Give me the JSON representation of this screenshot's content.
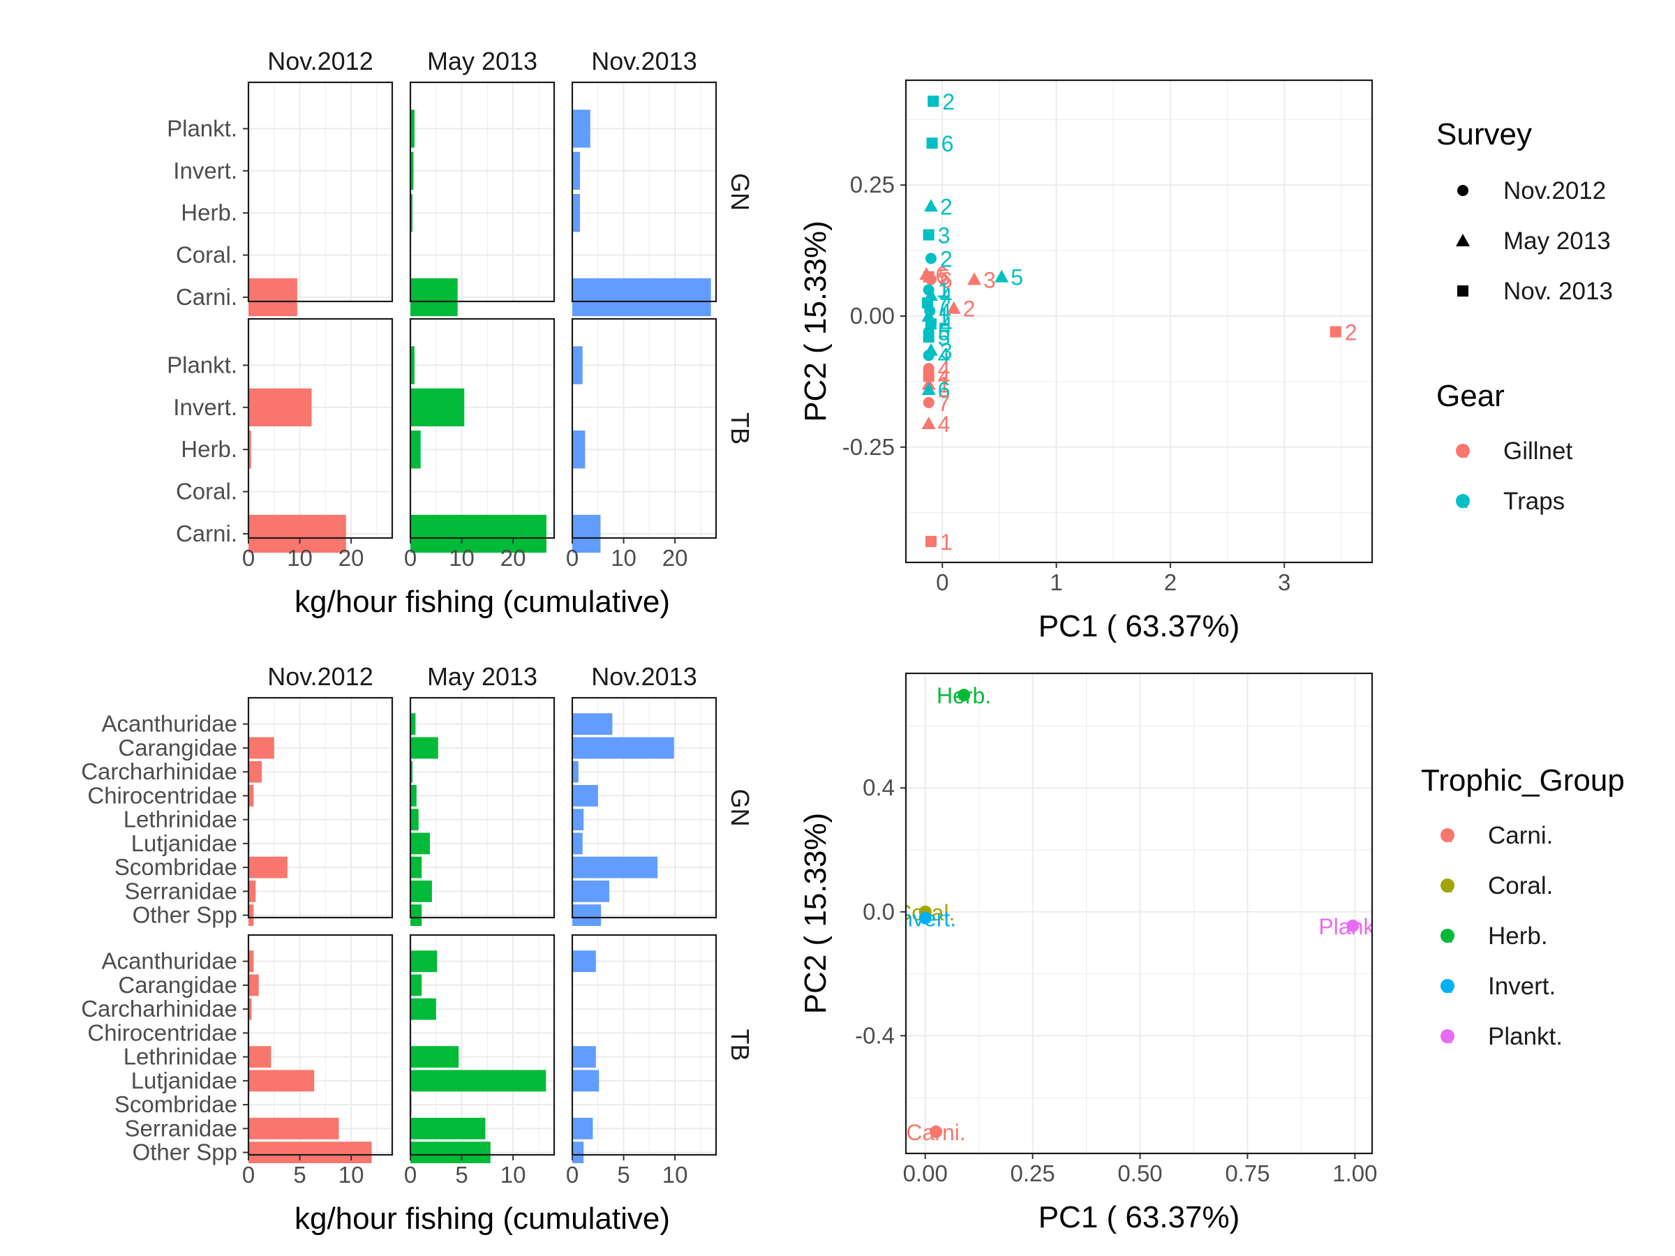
{
  "chart_data": [
    {
      "type": "bar",
      "id": "top-left",
      "orientation": "horizontal",
      "facet_cols": [
        "Nov.2012",
        "May 2013",
        "Nov.2013"
      ],
      "facet_rows": [
        "GN",
        "TB"
      ],
      "categories": [
        "Plankt.",
        "Invert.",
        "Herb.",
        "Coral.",
        "Carni."
      ],
      "xlim": [
        0,
        28
      ],
      "xticks": [
        0,
        10,
        20
      ],
      "xlabel": "kg/hour fishing (cumulative)",
      "colors": [
        "#F8766D",
        "#00BA38",
        "#619CFF"
      ],
      "values": {
        "GN": [
          [
            0,
            0,
            0,
            0,
            9.5
          ],
          [
            0.8,
            0.6,
            0.4,
            0,
            9.2
          ],
          [
            3.5,
            1.5,
            1.5,
            0,
            27.0
          ]
        ],
        "TB": [
          [
            0,
            12.3,
            0.5,
            0,
            19.0
          ],
          [
            0.8,
            10.5,
            2.0,
            0,
            26.5
          ],
          [
            2.0,
            0,
            2.5,
            0,
            5.5
          ]
        ]
      }
    },
    {
      "type": "bar",
      "id": "bottom-left",
      "orientation": "horizontal",
      "facet_cols": [
        "Nov.2012",
        "May 2013",
        "Nov.2013"
      ],
      "facet_rows": [
        "GN",
        "TB"
      ],
      "categories": [
        "Acanthuridae",
        "Carangidae",
        "Carcharhinidae",
        "Chirocentridae",
        "Lethrinidae",
        "Lutjanidae",
        "Scombridae",
        "Serranidae",
        "Other Spp"
      ],
      "xlim": [
        0,
        14
      ],
      "xticks": [
        0,
        5,
        10
      ],
      "xlabel": "kg/hour fishing (cumulative)",
      "colors": [
        "#F8766D",
        "#00BA38",
        "#619CFF"
      ],
      "values": {
        "GN": [
          [
            0,
            2.5,
            1.3,
            0.5,
            0,
            0.1,
            3.8,
            0.7,
            0.5
          ],
          [
            0.5,
            2.7,
            0.2,
            0.6,
            0.8,
            1.9,
            1.1,
            2.1,
            1.1
          ],
          [
            3.9,
            9.9,
            0.6,
            2.5,
            1.1,
            1.0,
            8.3,
            3.6,
            2.8
          ]
        ],
        "TB": [
          [
            0.5,
            1.0,
            0.3,
            0,
            2.2,
            6.4,
            0,
            8.8,
            12.0
          ],
          [
            2.6,
            1.1,
            2.5,
            0,
            4.7,
            13.2,
            0.1,
            7.3,
            7.8
          ],
          [
            2.3,
            0,
            0,
            0,
            2.3,
            2.6,
            0,
            2.0,
            1.1
          ]
        ]
      }
    },
    {
      "type": "scatter",
      "id": "top-right",
      "xlabel": "PC1 ( 63.37%)",
      "ylabel": "PC2 ( 15.33%)",
      "xlim": [
        -0.32,
        3.77
      ],
      "ylim": [
        -0.47,
        0.45
      ],
      "xticks": [
        0,
        1,
        2,
        3
      ],
      "yticks": [
        0.25,
        0.0,
        -0.25
      ],
      "ytick_labels": [
        "0.25",
        "0.00",
        "-0.25"
      ],
      "legend_survey": {
        "title": "Survey",
        "items": [
          "Nov.2012",
          "May 2013",
          "Nov. 2013"
        ]
      },
      "legend_gear": {
        "title": "Gear",
        "items": [
          "Gillnet",
          "Traps"
        ]
      },
      "gear_colors": {
        "Gillnet": "#F8766D",
        "Traps": "#00BFC4"
      },
      "legend_key_glyph": "a",
      "points": [
        {
          "x": -0.08,
          "y": 0.41,
          "survey": "Nov. 2013",
          "gear": "Traps",
          "label": "2"
        },
        {
          "x": -0.09,
          "y": 0.33,
          "survey": "Nov. 2013",
          "gear": "Traps",
          "label": "6"
        },
        {
          "x": -0.1,
          "y": 0.21,
          "survey": "May 2013",
          "gear": "Traps",
          "label": "2"
        },
        {
          "x": -0.12,
          "y": 0.155,
          "survey": "Nov. 2013",
          "gear": "Traps",
          "label": "3"
        },
        {
          "x": -0.1,
          "y": 0.11,
          "survey": "Nov.2012",
          "gear": "Traps",
          "label": "2"
        },
        {
          "x": -0.14,
          "y": 0.08,
          "survey": "May 2013",
          "gear": "Gillnet",
          "label": "6"
        },
        {
          "x": -0.12,
          "y": 0.075,
          "survey": "Nov. 2013",
          "gear": "Gillnet",
          "label": "5"
        },
        {
          "x": -0.1,
          "y": 0.07,
          "survey": "Nov.2012",
          "gear": "Gillnet",
          "label": "6"
        },
        {
          "x": 0.28,
          "y": 0.07,
          "survey": "May 2013",
          "gear": "Gillnet",
          "label": "3"
        },
        {
          "x": 0.52,
          "y": 0.075,
          "survey": "May 2013",
          "gear": "Traps",
          "label": "5"
        },
        {
          "x": -0.12,
          "y": 0.05,
          "survey": "Nov.2012",
          "gear": "Traps",
          "label": "1"
        },
        {
          "x": -0.1,
          "y": 0.04,
          "survey": "May 2013",
          "gear": "Traps",
          "label": "4"
        },
        {
          "x": -0.13,
          "y": 0.025,
          "survey": "Nov. 2013",
          "gear": "Traps",
          "label": "7"
        },
        {
          "x": 0.1,
          "y": 0.015,
          "survey": "May 2013",
          "gear": "Gillnet",
          "label": "2"
        },
        {
          "x": -0.11,
          "y": 0.01,
          "survey": "Nov.2012",
          "gear": "Traps",
          "label": "4"
        },
        {
          "x": -0.12,
          "y": 0.0,
          "survey": "May 2013",
          "gear": "Traps",
          "label": "1"
        },
        {
          "x": -0.1,
          "y": -0.015,
          "survey": "Nov. 2013",
          "gear": "Traps",
          "label": "4"
        },
        {
          "x": -0.12,
          "y": -0.03,
          "survey": "Nov.2012",
          "gear": "Traps",
          "label": "5"
        },
        {
          "x": -0.12,
          "y": -0.04,
          "survey": "Nov. 2013",
          "gear": "Traps",
          "label": "5"
        },
        {
          "x": -0.1,
          "y": -0.065,
          "survey": "May 2013",
          "gear": "Traps",
          "label": "3"
        },
        {
          "x": -0.12,
          "y": -0.075,
          "survey": "Nov.2012",
          "gear": "Traps",
          "label": "4"
        },
        {
          "x": -0.12,
          "y": -0.1,
          "survey": "Nov.2012",
          "gear": "Gillnet",
          "label": "4"
        },
        {
          "x": -0.12,
          "y": -0.115,
          "survey": "Nov. 2013",
          "gear": "Gillnet",
          "label": "4"
        },
        {
          "x": -0.12,
          "y": -0.13,
          "survey": "May 2013",
          "gear": "Gillnet",
          "label": "1"
        },
        {
          "x": -0.12,
          "y": -0.14,
          "survey": "May 2013",
          "gear": "Traps",
          "label": "6"
        },
        {
          "x": -0.12,
          "y": -0.165,
          "survey": "Nov.2012",
          "gear": "Gillnet",
          "label": "7"
        },
        {
          "x": -0.12,
          "y": -0.205,
          "survey": "May 2013",
          "gear": "Gillnet",
          "label": "4"
        },
        {
          "x": 3.45,
          "y": -0.03,
          "survey": "Nov. 2013",
          "gear": "Gillnet",
          "label": "2"
        },
        {
          "x": -0.1,
          "y": -0.43,
          "survey": "Nov. 2013",
          "gear": "Gillnet",
          "label": "1"
        }
      ]
    },
    {
      "type": "scatter",
      "id": "bottom-right",
      "xlabel": "PC1 ( 63.37%)",
      "ylabel": "PC2 ( 15.33%)",
      "xlim": [
        -0.045,
        1.04
      ],
      "ylim": [
        -0.78,
        0.77
      ],
      "xticks": [
        0.0,
        0.25,
        0.5,
        0.75,
        1.0
      ],
      "xtick_labels": [
        "0.00",
        "0.25",
        "0.50",
        "0.75",
        "1.00"
      ],
      "yticks": [
        0.4,
        0.0,
        -0.4
      ],
      "ytick_labels": [
        "0.4",
        "0.0",
        "-0.4"
      ],
      "legend": {
        "title": "Trophic_Group",
        "items": [
          "Carni.",
          "Coral.",
          "Herb.",
          "Invert.",
          "Plankt."
        ]
      },
      "legend_key_glyph": "a",
      "points": [
        {
          "x": 0.09,
          "y": 0.7,
          "label": "Herb.",
          "color": "#00BA38"
        },
        {
          "x": 0.0,
          "y": 0.0,
          "label": "Coral.",
          "color": "#A3A500"
        },
        {
          "x": 0.0,
          "y": -0.02,
          "label": "Invert.",
          "color": "#00B0F6"
        },
        {
          "x": 0.995,
          "y": -0.045,
          "label": "Plankt.",
          "color": "#E76BF3"
        },
        {
          "x": 0.025,
          "y": -0.71,
          "label": "Carni.",
          "color": "#F8766D"
        }
      ]
    }
  ]
}
